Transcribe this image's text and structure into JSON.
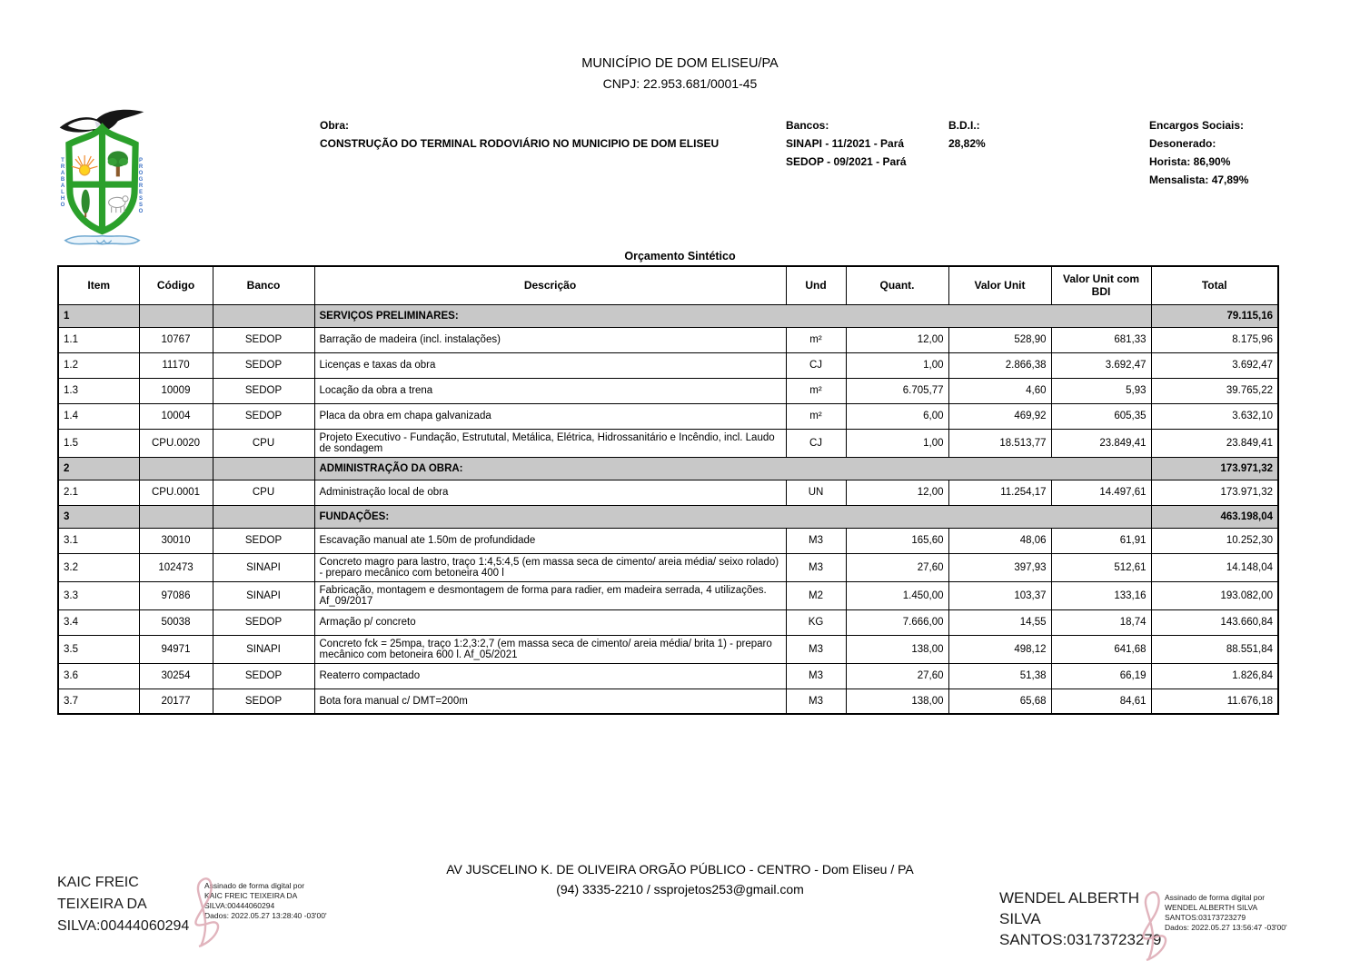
{
  "page": {
    "municipality": "MUNICÍPIO DE DOM ELISEU/PA",
    "cnpj": "CNPJ: 22.953.681/0001-45"
  },
  "logo": {
    "motto_left": "TRABALHO",
    "motto_right": "PROGRESSO"
  },
  "meta": {
    "obra_label": "Obra:",
    "obra_value": "CONSTRUÇÃO DO TERMINAL RODOVIÁRIO NO MUNICIPIO DE DOM ELISEU",
    "bancos_label": "Bancos:",
    "bancos_line1": "SINAPI - 11/2021 - Pará",
    "bancos_line2": "SEDOP - 09/2021 - Pará",
    "bdi_label": "B.D.I.:",
    "bdi_value": "28,82%",
    "encargos_label": "Encargos Sociais:",
    "encargos_line1": "Desonerado:",
    "encargos_line2": "Horista:  86,90%",
    "encargos_line3": "Mensalista:  47,89%"
  },
  "table": {
    "title": "Orçamento Sintético",
    "columns": [
      "Item",
      "Código",
      "Banco",
      "Descrição",
      "Und",
      "Quant.",
      "Valor Unit",
      "Valor Unit com BDI",
      "Total"
    ],
    "rows": [
      {
        "type": "section",
        "item": "1",
        "desc": "SERVIÇOS PRELIMINARES:",
        "total": "79.115,16"
      },
      {
        "type": "item",
        "item": "1.1",
        "codigo": "10767",
        "banco": "SEDOP",
        "desc": "Barração de madeira (incl. instalações)",
        "und": "m²",
        "quant": "12,00",
        "unit": "528,90",
        "bdi": "681,33",
        "total": "8.175,96"
      },
      {
        "type": "item",
        "item": "1.2",
        "codigo": "11170",
        "banco": "SEDOP",
        "desc": "Licenças e taxas da obra",
        "und": "CJ",
        "quant": "1,00",
        "unit": "2.866,38",
        "bdi": "3.692,47",
        "total": "3.692,47"
      },
      {
        "type": "item",
        "item": "1.3",
        "codigo": "10009",
        "banco": "SEDOP",
        "desc": "Locação da obra a trena",
        "und": "m²",
        "quant": "6.705,77",
        "unit": "4,60",
        "bdi": "5,93",
        "total": "39.765,22"
      },
      {
        "type": "item",
        "item": "1.4",
        "codigo": "10004",
        "banco": "SEDOP",
        "desc": "Placa da obra em chapa galvanizada",
        "und": "m²",
        "quant": "6,00",
        "unit": "469,92",
        "bdi": "605,35",
        "total": "3.632,10"
      },
      {
        "type": "item",
        "item": "1.5",
        "codigo": "CPU.0020",
        "banco": "CPU",
        "desc": "Projeto Executivo - Fundação, Estrututal, Metálica, Elétrica, Hidrossanitário e Incêndio, incl. Laudo de sondagem",
        "und": "CJ",
        "quant": "1,00",
        "unit": "18.513,77",
        "bdi": "23.849,41",
        "total": "23.849,41"
      },
      {
        "type": "section",
        "item": "2",
        "desc": "ADMINISTRAÇÃO DA OBRA:",
        "total": "173.971,32"
      },
      {
        "type": "item",
        "item": "2.1",
        "codigo": "CPU.0001",
        "banco": "CPU",
        "desc": "Administração local de obra",
        "und": "UN",
        "quant": "12,00",
        "unit": "11.254,17",
        "bdi": "14.497,61",
        "total": "173.971,32"
      },
      {
        "type": "section",
        "item": "3",
        "desc": "FUNDAÇÕES:",
        "total": "463.198,04"
      },
      {
        "type": "item",
        "item": "3.1",
        "codigo": "30010",
        "banco": "SEDOP",
        "desc": "Escavação manual ate 1.50m de profundidade",
        "und": "M3",
        "quant": "165,60",
        "unit": "48,06",
        "bdi": "61,91",
        "total": "10.252,30"
      },
      {
        "type": "item",
        "item": "3.2",
        "codigo": "102473",
        "banco": "SINAPI",
        "desc": "Concreto magro para lastro, traço 1:4,5:4,5 (em massa seca de cimento/ areia média/ seixo rolado) - preparo mecânico com betoneira 400 l",
        "und": "M3",
        "quant": "27,60",
        "unit": "397,93",
        "bdi": "512,61",
        "total": "14.148,04"
      },
      {
        "type": "item",
        "item": "3.3",
        "codigo": "97086",
        "banco": "SINAPI",
        "desc": "Fabricação, montagem e desmontagem de forma para radier, em madeira serrada, 4 utilizações. Af_09/2017",
        "und": "M2",
        "quant": "1.450,00",
        "unit": "103,37",
        "bdi": "133,16",
        "total": "193.082,00"
      },
      {
        "type": "item",
        "item": "3.4",
        "codigo": "50038",
        "banco": "SEDOP",
        "desc": "Armação p/ concreto",
        "und": "KG",
        "quant": "7.666,00",
        "unit": "14,55",
        "bdi": "18,74",
        "total": "143.660,84"
      },
      {
        "type": "item",
        "item": "3.5",
        "codigo": "94971",
        "banco": "SINAPI",
        "desc": "Concreto fck = 25mpa, traço 1:2,3:2,7 (em massa seca de cimento/ areia média/ brita 1) - preparo mecânico com betoneira 600 l. Af_05/2021",
        "und": "M3",
        "quant": "138,00",
        "unit": "498,12",
        "bdi": "641,68",
        "total": "88.551,84"
      },
      {
        "type": "item",
        "item": "3.6",
        "codigo": "30254",
        "banco": "SEDOP",
        "desc": "Reaterro compactado",
        "und": "M3",
        "quant": "27,60",
        "unit": "51,38",
        "bdi": "66,19",
        "total": "1.826,84"
      },
      {
        "type": "item",
        "item": "3.7",
        "codigo": "20177",
        "banco": "SEDOP",
        "desc": "Bota fora manual c/ DMT=200m",
        "und": "M3",
        "quant": "138,00",
        "unit": "65,68",
        "bdi": "84,61",
        "total": "11.676,18"
      }
    ]
  },
  "footer": {
    "address": "AV JUSCELINO K. DE OLIVEIRA ORGÃO PÚBLICO - CENTRO - Dom Eliseu / PA",
    "contact": "(94) 3335-2210 / ssprojetos253@gmail.com"
  },
  "signatures": {
    "left": {
      "name": "KAIC FREIC TEIXEIRA DA SILVA:00444060294",
      "details": "Assinado de forma digital por\nKAIC FREIC TEIXEIRA DA\nSILVA:00444060294\nDados: 2022.05.27 13:28:40 -03'00'"
    },
    "right": {
      "name": "WENDEL ALBERTH SILVA SANTOS:03173723279",
      "details": "Assinado de forma digital por\nWENDEL ALBERTH SILVA\nSANTOS:03173723279\nDados: 2022.05.27 13:56:47 -03'00'"
    }
  }
}
